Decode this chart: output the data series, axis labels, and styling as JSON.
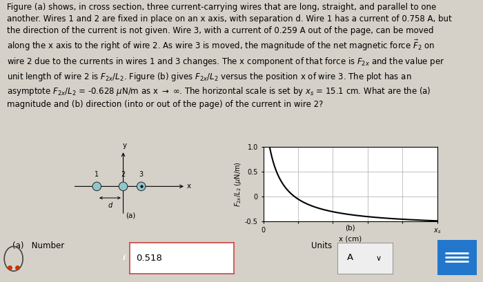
{
  "background_color": "#d5d1c8",
  "line1": "Figure (a) shows, in cross section, three current-carrying wires that are long, straight, and parallel to one",
  "line2": "another. Wires 1 and 2 are fixed in place on an x axis, with separation d. Wire 1 has a current of 0.758 A, but",
  "line3": "the direction of the current is not given. Wire 3, with a current of 0.259 A out of the page, can be moved",
  "line4": "along the x axis to the right of wire 2. As wire 3 is moved, the magnitude of the net magnetic force $\\vec{F}_2$ on",
  "line5": "wire 2 due to the currents in wires 1 and 3 changes. The x component of that force is $F_{2x}$ and the value per",
  "line6": "unit length of wire 2 is $F_{2x}/L_2$. Figure (b) gives $F_{2x}/L_2$ versus the position x of wire 3. The plot has an",
  "line7": "asymptote $F_{2x}/L_2$ = -0.628 $\\mu$N/m as x $\\rightarrow$ $\\infty$. The horizontal scale is set by $x_s$ = 15.1 cm. What are the (a)",
  "line8": "magnitude and (b) direction (into or out of the page) of the current in wire 2?",
  "panel_a_label": "(a)",
  "panel_b_label": "(b)",
  "graph_xlabel": "x (cm)",
  "graph_ylabel": "$F_{2x}/L_2$ ($\\mu$N/m)",
  "graph_ylim": [
    -0.5,
    1.0
  ],
  "graph_xlim": [
    0,
    15.1
  ],
  "asymptote": -0.628,
  "wire_fill": "#8ec8cc",
  "wire_edge": "#333333",
  "answer_number": "0.518",
  "answer_units": "A",
  "info_icon_color": "#1a6fc4",
  "answer_box_border": "#cc4444",
  "blue_button_color": "#2277cc",
  "font_size_body": 8.5,
  "font_size_small": 7.5,
  "curve_A": 2.2,
  "curve_eps": 0.8
}
